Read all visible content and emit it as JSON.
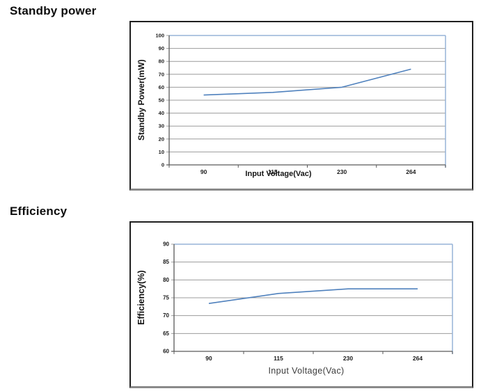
{
  "headings": {
    "standby": "Standby power",
    "efficiency": "Efficiency"
  },
  "colors": {
    "line": "#4f81bd",
    "plot_border": "#95b3d7",
    "grid": "#9c9c9c",
    "axis": "#595959",
    "tick_text": "#1a1a1a",
    "frame_border": "#1f1f1f",
    "frame_bottom": "#8a8a8a",
    "background": "#ffffff"
  },
  "chart_data": [
    {
      "type": "line",
      "title": "Standby power",
      "categories": [
        "90",
        "115",
        "230",
        "264"
      ],
      "series": [
        {
          "name": "standby-power",
          "values": [
            54,
            56,
            60,
            74
          ]
        }
      ],
      "xlabel": "Input Voltage(Vac)",
      "ylabel": "Standby Power(mW)",
      "ylim": [
        0,
        100
      ],
      "yticks": [
        0,
        10,
        20,
        30,
        40,
        50,
        60,
        70,
        80,
        90,
        100
      ],
      "grid": true,
      "legend": "none"
    },
    {
      "type": "line",
      "title": "Efficiency",
      "categories": [
        "90",
        "115",
        "230",
        "264"
      ],
      "series": [
        {
          "name": "efficiency",
          "values": [
            73.4,
            76.2,
            77.5,
            77.5
          ]
        }
      ],
      "xlabel": "Input Voltage(Vac)",
      "ylabel": "Efficiency(%)",
      "ylim": [
        60,
        90
      ],
      "yticks": [
        60,
        65,
        70,
        75,
        80,
        85,
        90
      ],
      "grid": true,
      "legend": "none"
    }
  ]
}
